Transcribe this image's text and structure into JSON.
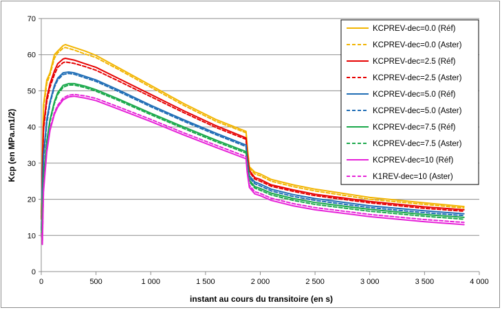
{
  "chart_data": {
    "type": "line",
    "title": "",
    "xlabel": "instant au cours du transitoire (en s)",
    "ylabel": "Kcp (en MPa.m1/2)",
    "xlim": [
      0,
      4000
    ],
    "ylim": [
      0,
      70
    ],
    "x_ticks": [
      0,
      500,
      1000,
      1500,
      2000,
      2500,
      3000,
      3500,
      4000
    ],
    "x_tick_labels": [
      "0",
      "500",
      "1 000",
      "1 500",
      "2 000",
      "2 500",
      "3 000",
      "3 500",
      "4 000"
    ],
    "y_ticks": [
      0,
      10,
      20,
      30,
      40,
      50,
      60,
      70
    ],
    "y_tick_labels": [
      "0",
      "10",
      "20",
      "30",
      "40",
      "50",
      "60",
      "70"
    ],
    "grid": "horizontal",
    "legend_position": "top-right",
    "series": [
      {
        "name": "KCPREV-dec=0.0 (Réf)",
        "color": "#f2b400",
        "dash": "solid",
        "x": [
          0,
          20,
          50,
          80,
          120,
          150,
          200,
          220,
          300,
          400,
          500,
          700,
          1000,
          1300,
          1600,
          1870,
          1880,
          1900,
          1950,
          2000,
          2100,
          2300,
          2500,
          3000,
          3500,
          3860
        ],
        "y": [
          17,
          46,
          53,
          55,
          60,
          61,
          62.5,
          62.8,
          62,
          61,
          59.8,
          56.5,
          51.5,
          46.5,
          42,
          38.8,
          35,
          29,
          27.5,
          27,
          25.5,
          24,
          22.8,
          20.5,
          19,
          18
        ]
      },
      {
        "name": "KCPREV-dec=0.0 (Aster)",
        "color": "#f2b400",
        "dash": "dashed",
        "x": [
          0,
          20,
          50,
          80,
          120,
          150,
          200,
          220,
          300,
          400,
          500,
          700,
          1000,
          1300,
          1600,
          1870,
          1880,
          1900,
          1950,
          2000,
          2100,
          2300,
          2500,
          3000,
          3500,
          3860
        ],
        "y": [
          16.5,
          45,
          52,
          54.5,
          59,
          60.5,
          61.8,
          62,
          61.3,
          60.2,
          59.2,
          56,
          51,
          46,
          41.5,
          38.4,
          34.6,
          28.6,
          27,
          26.5,
          25,
          23.5,
          22.3,
          20,
          18.6,
          17.6
        ]
      },
      {
        "name": "KCPREV-dec=2.5 (Réf)",
        "color": "#e60000",
        "dash": "solid",
        "x": [
          0,
          20,
          50,
          80,
          120,
          150,
          200,
          220,
          300,
          400,
          500,
          700,
          1000,
          1300,
          1600,
          1870,
          1880,
          1900,
          1950,
          2000,
          2100,
          2300,
          2500,
          3000,
          3500,
          3860
        ],
        "y": [
          15,
          40,
          48,
          52,
          55.5,
          57.5,
          58.8,
          59,
          58.5,
          57.5,
          56.5,
          53.5,
          49,
          44.5,
          40.3,
          37,
          33,
          28,
          26,
          25.5,
          24,
          22.6,
          21.4,
          19.4,
          17.9,
          17.1
        ]
      },
      {
        "name": "KCPREV-dec=2.5 (Aster)",
        "color": "#e60000",
        "dash": "dashed",
        "x": [
          0,
          20,
          50,
          80,
          120,
          150,
          200,
          220,
          300,
          400,
          500,
          700,
          1000,
          1300,
          1600,
          1870,
          1880,
          1900,
          1950,
          2000,
          2100,
          2300,
          2500,
          3000,
          3500,
          3860
        ],
        "y": [
          14.5,
          39,
          47,
          51,
          54.5,
          56.5,
          57.8,
          58,
          57.6,
          56.7,
          55.7,
          52.8,
          48.4,
          44,
          39.8,
          36.6,
          32.6,
          27.6,
          25.6,
          25,
          23.6,
          22.2,
          21,
          19,
          17.5,
          16.7
        ]
      },
      {
        "name": "KCPREV-dec=5.0 (Réf)",
        "color": "#1f6db5",
        "dash": "solid",
        "x": [
          0,
          20,
          50,
          80,
          120,
          150,
          200,
          250,
          300,
          400,
          500,
          700,
          1000,
          1300,
          1600,
          1870,
          1880,
          1900,
          1950,
          2000,
          2100,
          2300,
          2500,
          3000,
          3500,
          3860
        ],
        "y": [
          12,
          32,
          42,
          47,
          51.5,
          53.5,
          55,
          55.2,
          55,
          54,
          53,
          50.3,
          46,
          42,
          38.2,
          35,
          31,
          26.5,
          24.8,
          24.2,
          22.8,
          21.3,
          20.2,
          18.2,
          16.8,
          16
        ]
      },
      {
        "name": "KCPREV-dec=5.0 (Aster)",
        "color": "#1f6db5",
        "dash": "dashed",
        "x": [
          0,
          20,
          50,
          80,
          120,
          150,
          200,
          250,
          300,
          400,
          500,
          700,
          1000,
          1300,
          1600,
          1870,
          1880,
          1900,
          1950,
          2000,
          2100,
          2300,
          2500,
          3000,
          3500,
          3860
        ],
        "y": [
          11.5,
          31,
          41,
          46.5,
          51,
          53,
          54.5,
          54.8,
          54.6,
          53.6,
          52.6,
          49.9,
          45.6,
          41.6,
          37.8,
          34.6,
          30.6,
          26,
          24.3,
          23.7,
          22.3,
          20.8,
          19.7,
          17.7,
          16.3,
          15.5
        ]
      },
      {
        "name": "KCPREV-dec=7.5 (Réf)",
        "color": "#19a84a",
        "dash": "solid",
        "x": [
          0,
          20,
          50,
          80,
          120,
          150,
          200,
          250,
          300,
          400,
          500,
          700,
          1000,
          1300,
          1600,
          1870,
          1880,
          1900,
          1950,
          2000,
          2100,
          2300,
          2500,
          3000,
          3500,
          3860
        ],
        "y": [
          10,
          26,
          36,
          42,
          47,
          49.5,
          51.5,
          52,
          52,
          51.3,
          50.3,
          47.8,
          43.8,
          40,
          36.3,
          33.2,
          29.5,
          25.3,
          23.5,
          23,
          21.7,
          20.2,
          19.1,
          17.2,
          15.8,
          15
        ]
      },
      {
        "name": "KCPREV-dec=7.5 (Aster)",
        "color": "#19a84a",
        "dash": "dashed",
        "x": [
          0,
          20,
          50,
          80,
          120,
          150,
          200,
          250,
          300,
          400,
          500,
          700,
          1000,
          1300,
          1600,
          1870,
          1880,
          1900,
          1950,
          2000,
          2100,
          2300,
          2500,
          3000,
          3500,
          3860
        ],
        "y": [
          9.8,
          25.5,
          35.5,
          41.5,
          46.5,
          49,
          51,
          51.6,
          51.6,
          50.9,
          49.9,
          47.4,
          43.4,
          39.6,
          35.9,
          32.8,
          29.1,
          24.9,
          23.1,
          22.5,
          21.2,
          19.7,
          18.6,
          16.7,
          15.3,
          14.5
        ]
      },
      {
        "name": "KCPREV-dec=10 (Réf)",
        "color": "#e620d8",
        "dash": "solid",
        "x": [
          0,
          10,
          20,
          50,
          80,
          120,
          150,
          200,
          250,
          300,
          400,
          500,
          700,
          1000,
          1300,
          1600,
          1870,
          1880,
          1900,
          1950,
          2000,
          2100,
          2300,
          2500,
          3000,
          3500,
          3860
        ],
        "y": [
          10,
          7.5,
          22,
          33,
          39,
          43.5,
          45.5,
          47.5,
          48.3,
          48.5,
          48,
          47.3,
          45,
          41.5,
          37.8,
          34.3,
          31.2,
          27.5,
          23.3,
          21.5,
          21,
          19.7,
          18.2,
          17.1,
          15.2,
          13.8,
          13
        ]
      },
      {
        "name": "K1REV-dec=10 (Aster)",
        "color": "#e620d8",
        "dash": "dashed",
        "x": [
          0,
          10,
          20,
          50,
          80,
          120,
          150,
          200,
          250,
          300,
          400,
          500,
          700,
          1000,
          1300,
          1600,
          1870,
          1880,
          1900,
          1950,
          2000,
          2100,
          2300,
          2500,
          3000,
          3500,
          3860
        ],
        "y": [
          10.5,
          8,
          22.5,
          33.5,
          39.5,
          44,
          46,
          48,
          48.8,
          49,
          48.6,
          47.9,
          45.6,
          42.1,
          38.4,
          34.9,
          31.8,
          28.1,
          23.9,
          22.1,
          21.6,
          20.3,
          18.8,
          17.7,
          15.8,
          14.4,
          13.6
        ]
      }
    ]
  }
}
